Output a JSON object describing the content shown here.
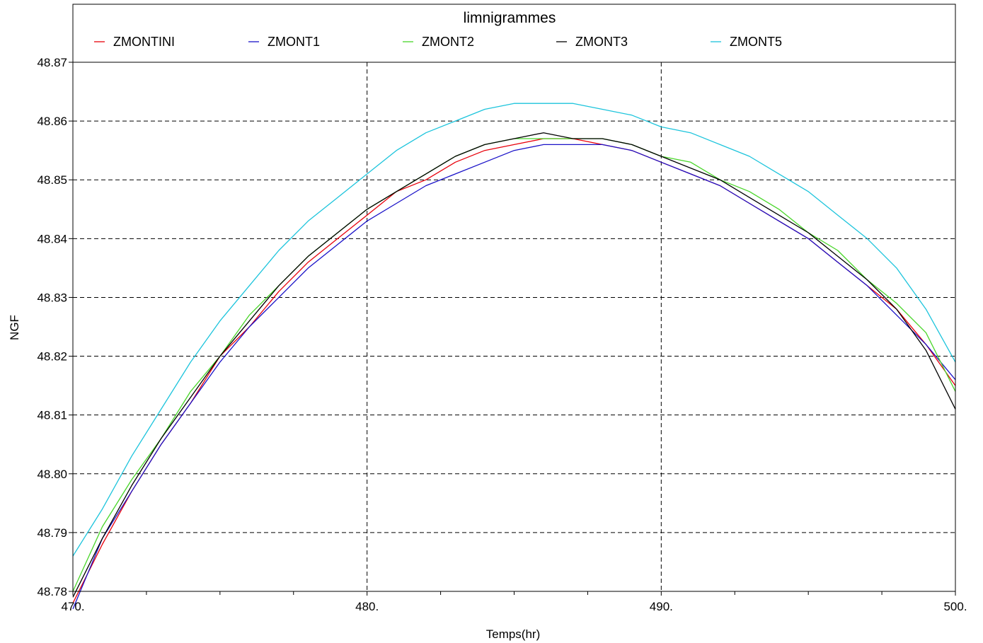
{
  "chart_data": {
    "type": "line",
    "title": "limnigrammes",
    "xlabel": "Temps(hr)",
    "ylabel": "NGF",
    "xlim": [
      470,
      500
    ],
    "ylim": [
      48.78,
      48.87
    ],
    "x_ticks": [
      {
        "value": 470,
        "label": "470."
      },
      {
        "value": 480,
        "label": "480."
      },
      {
        "value": 490,
        "label": "490."
      },
      {
        "value": 500,
        "label": "500."
      }
    ],
    "x_minor_step": 2.5,
    "y_ticks": [
      {
        "value": 48.78,
        "label": "48.78"
      },
      {
        "value": 48.79,
        "label": "48.79"
      },
      {
        "value": 48.8,
        "label": "48.80"
      },
      {
        "value": 48.81,
        "label": "48.81"
      },
      {
        "value": 48.82,
        "label": "48.82"
      },
      {
        "value": 48.83,
        "label": "48.83"
      },
      {
        "value": 48.84,
        "label": "48.84"
      },
      {
        "value": 48.85,
        "label": "48.85"
      },
      {
        "value": 48.86,
        "label": "48.86"
      },
      {
        "value": 48.87,
        "label": "48.87"
      }
    ],
    "grid": "dashed",
    "legend_position": "top",
    "x": [
      470,
      471,
      472,
      473,
      474,
      475,
      476,
      477,
      478,
      479,
      480,
      481,
      482,
      483,
      484,
      485,
      486,
      487,
      488,
      489,
      490,
      491,
      492,
      493,
      494,
      495,
      496,
      497,
      498,
      499,
      500
    ],
    "series": [
      {
        "name": "ZMONTINI",
        "color": "#e8000b",
        "values": [
          48.778,
          48.788,
          48.797,
          48.805,
          48.812,
          48.82,
          48.825,
          48.831,
          48.836,
          48.84,
          48.844,
          48.848,
          48.85,
          48.853,
          48.855,
          48.856,
          48.857,
          48.857,
          48.856,
          48.855,
          48.853,
          48.851,
          48.849,
          48.846,
          48.843,
          48.84,
          48.836,
          48.832,
          48.828,
          48.822,
          48.815
        ]
      },
      {
        "name": "ZMONT1",
        "color": "#1a12c8",
        "values": [
          48.777,
          48.789,
          48.797,
          48.805,
          48.812,
          48.819,
          48.825,
          48.83,
          48.835,
          48.839,
          48.843,
          48.846,
          48.849,
          48.851,
          48.853,
          48.855,
          48.856,
          48.856,
          48.856,
          48.855,
          48.853,
          48.851,
          48.849,
          48.846,
          48.843,
          48.84,
          48.836,
          48.832,
          48.827,
          48.822,
          48.816
        ]
      },
      {
        "name": "ZMONT2",
        "color": "#49d629",
        "values": [
          48.78,
          48.791,
          48.799,
          48.806,
          48.814,
          48.82,
          48.827,
          48.832,
          48.837,
          48.841,
          48.845,
          48.848,
          48.851,
          48.854,
          48.856,
          48.857,
          48.857,
          48.857,
          48.857,
          48.856,
          48.854,
          48.853,
          48.85,
          48.848,
          48.845,
          48.841,
          48.838,
          48.833,
          48.829,
          48.824,
          48.814
        ]
      },
      {
        "name": "ZMONT3",
        "color": "#000000",
        "values": [
          48.779,
          48.789,
          48.798,
          48.806,
          48.813,
          48.82,
          48.826,
          48.832,
          48.837,
          48.841,
          48.845,
          48.848,
          48.851,
          48.854,
          48.856,
          48.857,
          48.858,
          48.857,
          48.857,
          48.856,
          48.854,
          48.852,
          48.85,
          48.847,
          48.844,
          48.841,
          48.837,
          48.833,
          48.828,
          48.821,
          48.811
        ]
      },
      {
        "name": "ZMONT5",
        "color": "#1cc4dc",
        "values": [
          48.786,
          48.794,
          48.803,
          48.811,
          48.819,
          48.826,
          48.832,
          48.838,
          48.843,
          48.847,
          48.851,
          48.855,
          48.858,
          48.86,
          48.862,
          48.863,
          48.863,
          48.863,
          48.862,
          48.861,
          48.859,
          48.858,
          48.856,
          48.854,
          48.851,
          48.848,
          48.844,
          48.84,
          48.835,
          48.828,
          48.819
        ]
      }
    ]
  }
}
